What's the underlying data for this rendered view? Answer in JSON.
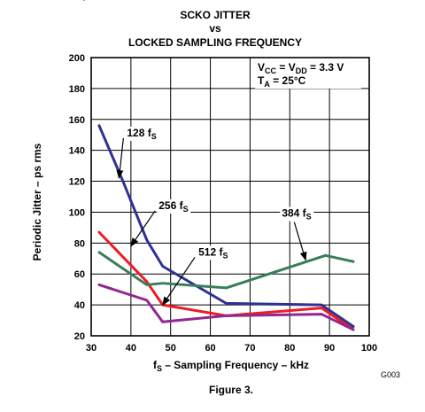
{
  "chart_data": {
    "type": "line",
    "title_line1": "SCKO JITTER",
    "title_line2": "vs",
    "title_line3": "LOCKED SAMPLING FREQUENCY",
    "top_fragment": "(",
    "conditions_line1": {
      "a": "V",
      "a_sub": "CC",
      "b": " = V",
      "b_sub": "DD",
      "c": " = 3.3 V"
    },
    "conditions_line2": {
      "a": "T",
      "a_sub": "A",
      "b": " = 25°C"
    },
    "xlabel": {
      "main": "f",
      "sub": "S",
      "rest": " – Sampling Frequency – kHz"
    },
    "ylabel": "Periodic Jitter – ps rms",
    "xlim": [
      30,
      100
    ],
    "ylim": [
      20,
      200
    ],
    "xticks": [
      30,
      40,
      50,
      60,
      70,
      80,
      90,
      100
    ],
    "yticks": [
      20,
      40,
      60,
      80,
      100,
      120,
      140,
      160,
      180,
      200
    ],
    "grid": true,
    "series": [
      {
        "name": "128",
        "name_sub": "S",
        "color": "#2e3192",
        "x": [
          32,
          38,
          44,
          48,
          64,
          88,
          96
        ],
        "y": [
          156,
          120,
          82,
          65,
          41,
          40,
          26
        ],
        "label_x": 39,
        "label_y": 149,
        "arrow_to_x": 37,
        "arrow_to_y": 122
      },
      {
        "name": "256",
        "name_sub": "S",
        "color": "#ed1c24",
        "x": [
          32,
          44,
          48,
          64,
          88,
          96
        ],
        "y": [
          87,
          55,
          40,
          33,
          38,
          24
        ],
        "label_x": 47,
        "label_y": 102,
        "arrow_to_x": 40,
        "arrow_to_y": 78
      },
      {
        "name": "384",
        "name_sub": "S",
        "color": "#3a7d5a",
        "x": [
          32,
          44,
          48,
          64,
          89,
          96
        ],
        "y": [
          74,
          53,
          54,
          51,
          72,
          68
        ],
        "label_x": 78,
        "label_y": 97,
        "arrow_to_x": 84,
        "arrow_to_y": 69
      },
      {
        "name": "512",
        "name_sub": "S",
        "color": "#92278f",
        "x": [
          32,
          44,
          48,
          64,
          88,
          96
        ],
        "y": [
          53,
          43,
          29,
          33,
          34,
          24
        ],
        "label_x": 57,
        "label_y": 72,
        "arrow_to_x": 48,
        "arrow_to_y": 40
      }
    ],
    "figure_code": "G003",
    "caption": "Figure 3."
  }
}
